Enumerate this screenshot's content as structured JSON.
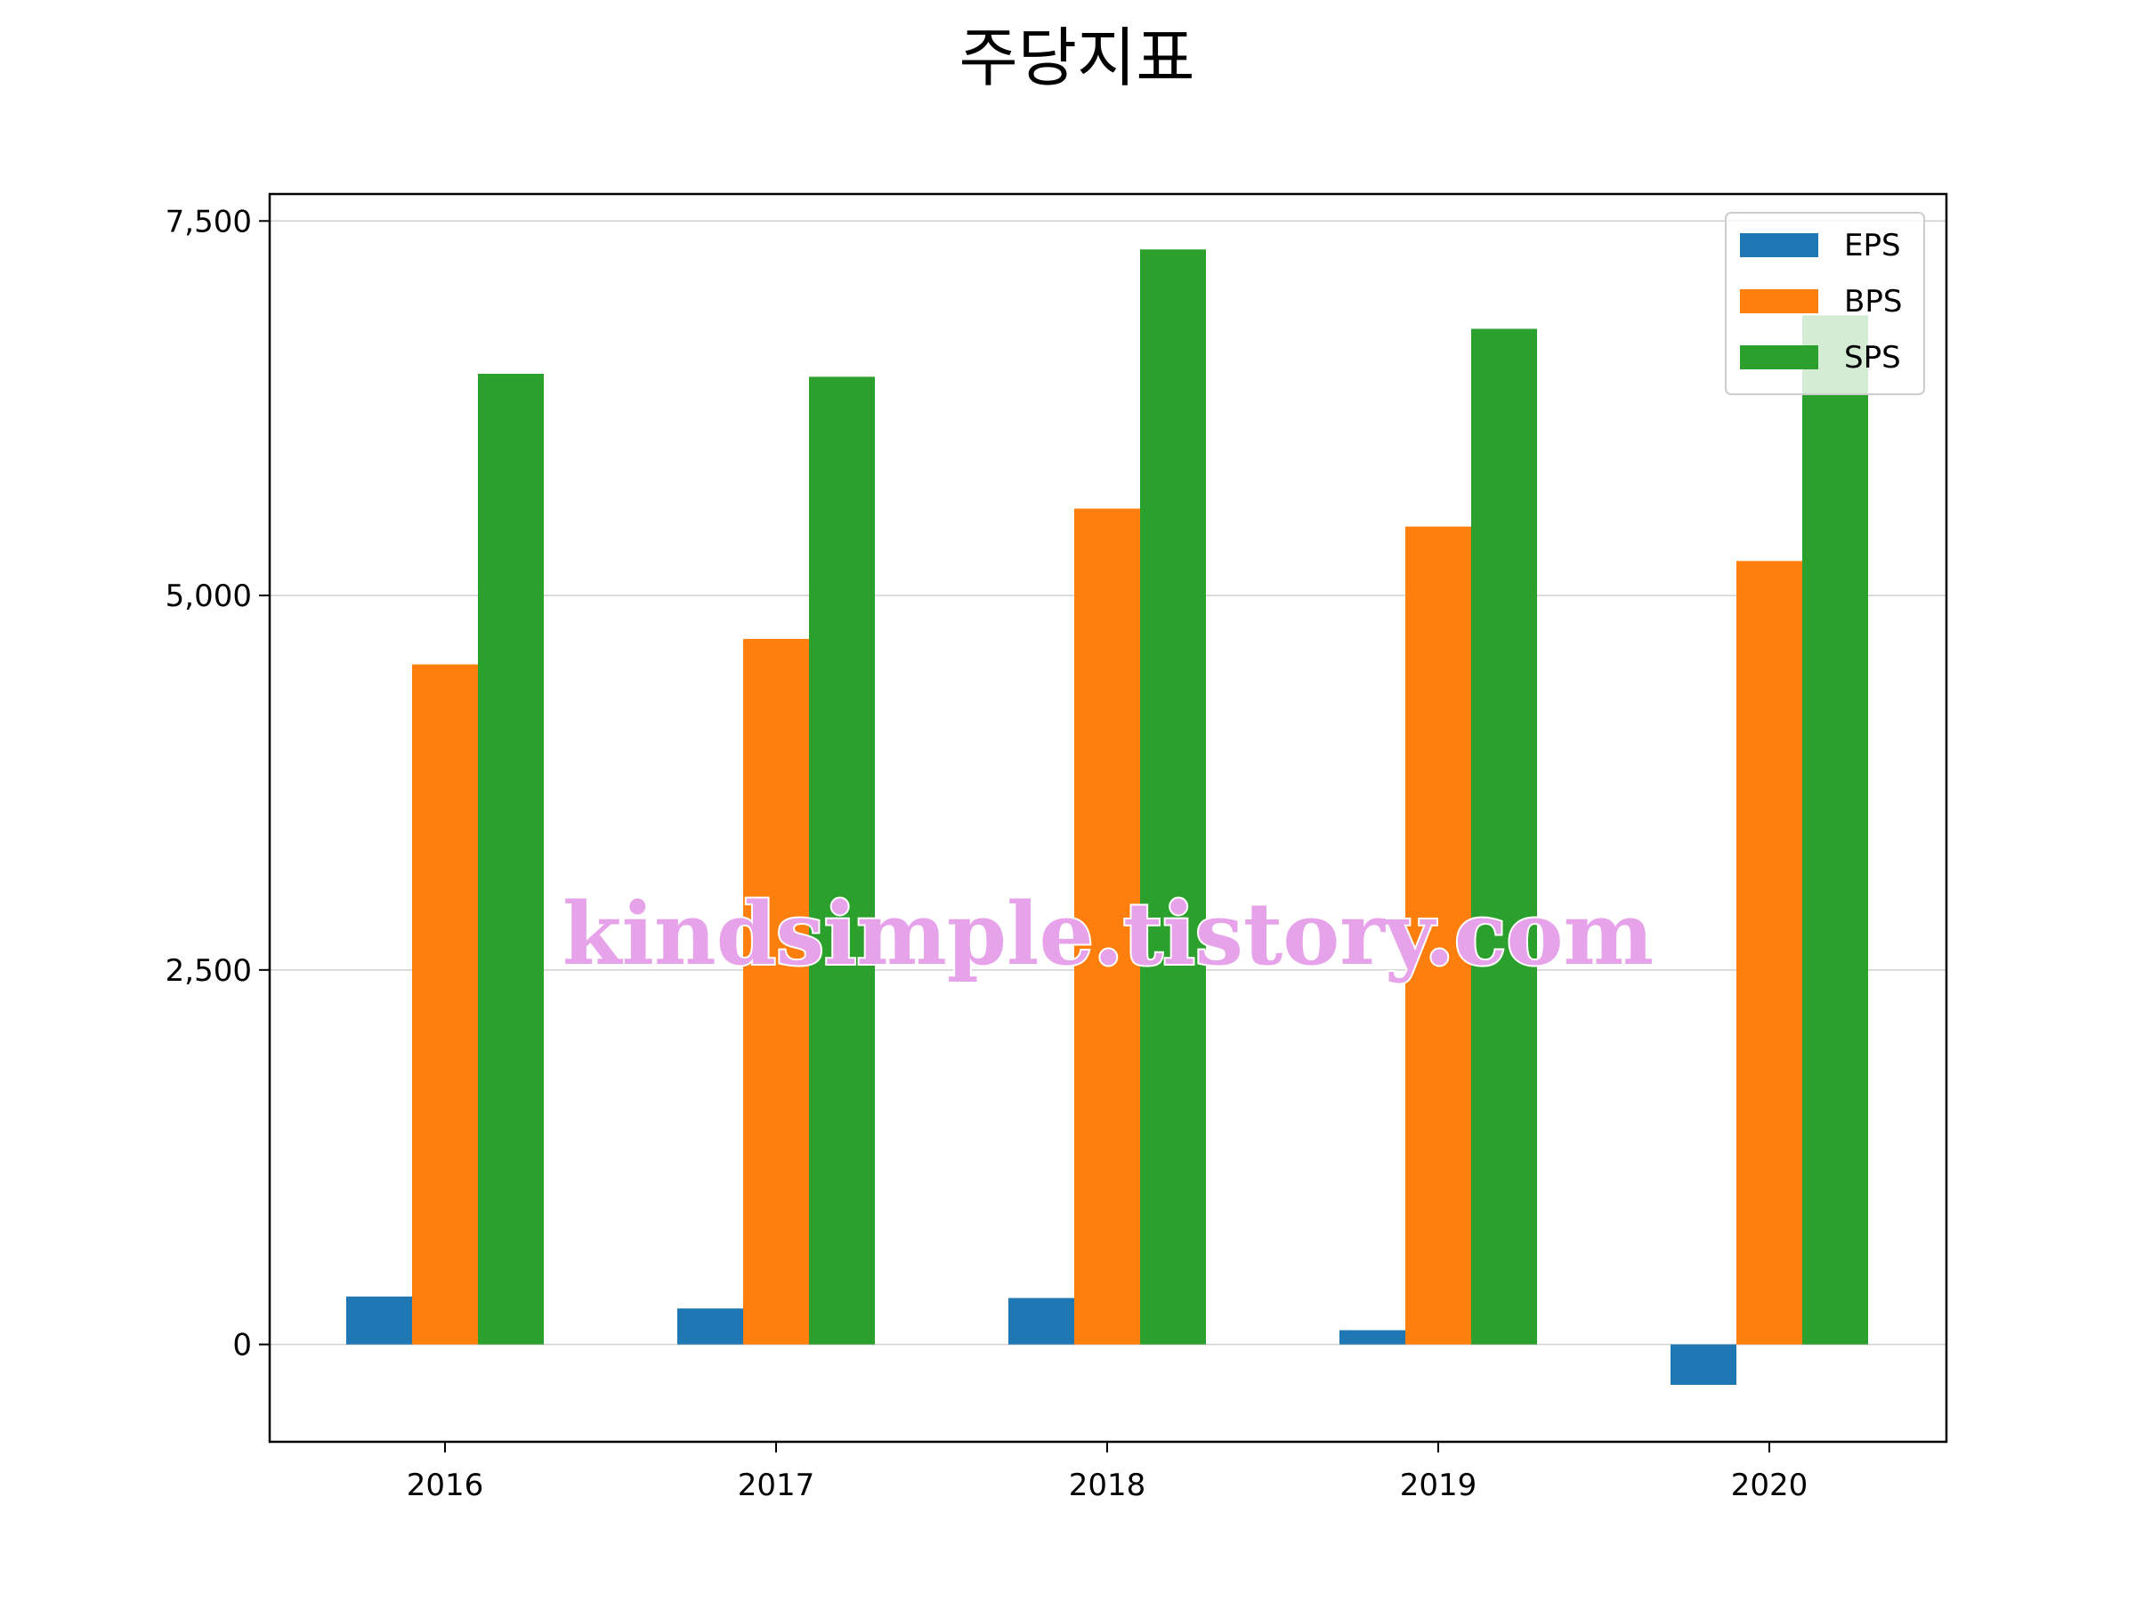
{
  "chart_data": {
    "type": "bar",
    "title": "주당지표",
    "xlabel": "",
    "ylabel": "",
    "categories": [
      "2016",
      "2017",
      "2018",
      "2019",
      "2020"
    ],
    "series": [
      {
        "name": "EPS",
        "color": "#1f77b4",
        "values": [
          320,
          240,
          310,
          95,
          -270
        ]
      },
      {
        "name": "BPS",
        "color": "#ff7f0e",
        "values": [
          4540,
          4710,
          5580,
          5460,
          5230
        ]
      },
      {
        "name": "SPS",
        "color": "#2ca02c",
        "values": [
          6480,
          6460,
          7310,
          6780,
          6870
        ]
      }
    ],
    "ylim": [
      -650,
      7680
    ],
    "yticks": [
      0,
      2500,
      5000,
      7500
    ],
    "ytick_labels": [
      "0",
      "2,500",
      "5,000",
      "7,500"
    ],
    "grid": "horizontal",
    "legend_position": "top-right"
  },
  "watermark": "kindsimple.tistory.com"
}
